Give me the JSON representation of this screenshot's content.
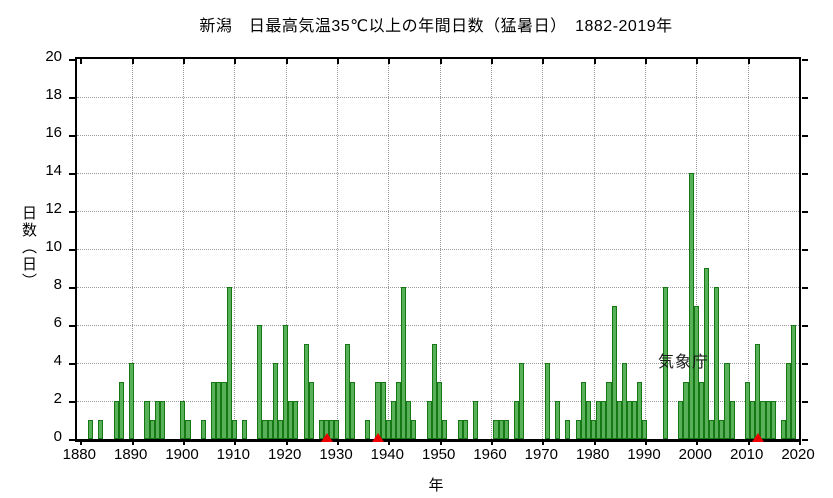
{
  "title": "新潟　日最高気温35℃以上の年間日数（猛暑日）　1882-2019年",
  "watermark": "気象庁",
  "chart_data": {
    "type": "bar",
    "title": "新潟　日最高気温35℃以上の年間日数（猛暑日）　1882-2019年",
    "xlabel": "年",
    "ylabel": "日数（日）",
    "xlim": [
      1879.35,
      2020
    ],
    "ylim": [
      0,
      20
    ],
    "x_ticks": [
      1880,
      1890,
      1900,
      1910,
      1920,
      1930,
      1940,
      1950,
      1960,
      1970,
      1980,
      1990,
      2000,
      2010,
      2020
    ],
    "y_ticks": [
      0,
      2,
      4,
      6,
      8,
      10,
      12,
      14,
      16,
      18,
      20
    ],
    "grid": true,
    "legend": "none",
    "bar_color": "#58b158",
    "bar_border_color": "#157815",
    "marker_color": "#ee0000",
    "relocation_marker_years": [
      1928,
      1938,
      2012
    ],
    "years": [
      1882,
      1883,
      1884,
      1885,
      1886,
      1887,
      1888,
      1889,
      1890,
      1891,
      1892,
      1893,
      1894,
      1895,
      1896,
      1897,
      1898,
      1899,
      1900,
      1901,
      1902,
      1903,
      1904,
      1905,
      1906,
      1907,
      1908,
      1909,
      1910,
      1911,
      1912,
      1913,
      1914,
      1915,
      1916,
      1917,
      1918,
      1919,
      1920,
      1921,
      1922,
      1923,
      1924,
      1925,
      1926,
      1927,
      1928,
      1929,
      1930,
      1931,
      1932,
      1933,
      1934,
      1935,
      1936,
      1937,
      1938,
      1939,
      1940,
      1941,
      1942,
      1943,
      1944,
      1945,
      1946,
      1947,
      1948,
      1949,
      1950,
      1951,
      1952,
      1953,
      1954,
      1955,
      1956,
      1957,
      1958,
      1959,
      1960,
      1961,
      1962,
      1963,
      1964,
      1965,
      1966,
      1967,
      1968,
      1969,
      1970,
      1971,
      1972,
      1973,
      1974,
      1975,
      1976,
      1977,
      1978,
      1979,
      1980,
      1981,
      1982,
      1983,
      1984,
      1985,
      1986,
      1987,
      1988,
      1989,
      1990,
      1991,
      1992,
      1993,
      1994,
      1995,
      1996,
      1997,
      1998,
      1999,
      2000,
      2001,
      2002,
      2003,
      2004,
      2005,
      2006,
      2007,
      2008,
      2009,
      2010,
      2011,
      2012,
      2013,
      2014,
      2015,
      2016,
      2017,
      2018,
      2019
    ],
    "values": [
      1,
      0,
      1,
      0,
      0,
      2,
      3,
      0,
      4,
      0,
      0,
      2,
      1,
      2,
      2,
      0,
      0,
      0,
      2,
      1,
      0,
      0,
      1,
      0,
      3,
      3,
      3,
      8,
      1,
      0,
      1,
      0,
      0,
      6,
      1,
      1,
      4,
      1,
      6,
      2,
      2,
      0,
      5,
      3,
      0,
      1,
      1,
      1,
      1,
      0,
      5,
      3,
      0,
      0,
      1,
      0,
      3,
      3,
      1,
      2,
      3,
      8,
      2,
      1,
      0,
      0,
      2,
      5,
      3,
      1,
      0,
      0,
      1,
      1,
      0,
      2,
      0,
      0,
      0,
      1,
      1,
      1,
      0,
      2,
      4,
      0,
      0,
      0,
      0,
      4,
      0,
      2,
      0,
      1,
      0,
      1,
      3,
      2,
      1,
      2,
      2,
      3,
      7,
      2,
      4,
      2,
      2,
      3,
      1,
      0,
      0,
      0,
      8,
      0,
      0,
      2,
      3,
      14,
      7,
      3,
      9,
      1,
      8,
      1,
      4,
      2,
      0,
      0,
      3,
      2,
      5,
      2,
      2,
      2,
      0,
      1,
      4,
      6
    ]
  }
}
